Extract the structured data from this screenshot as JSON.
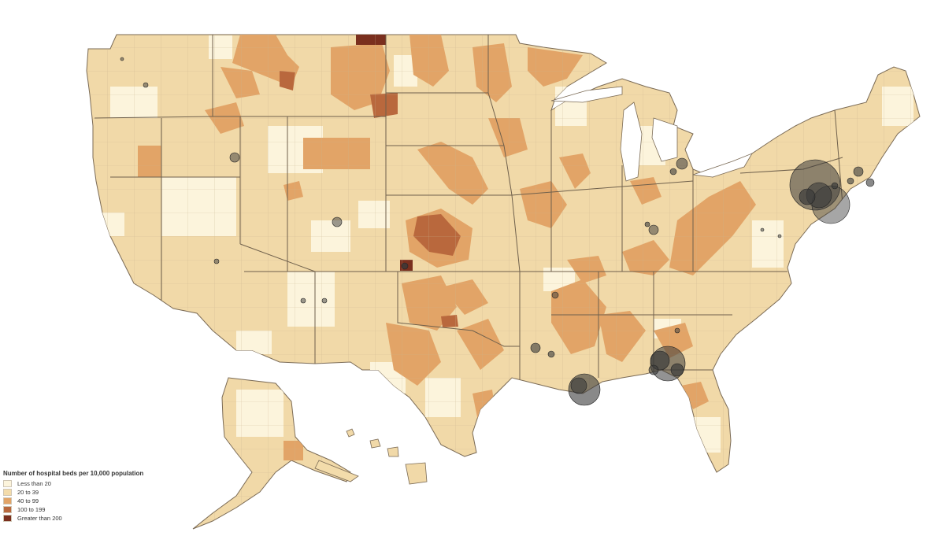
{
  "legend": {
    "title": "Number of hospital beds per 10,000 population",
    "items": [
      {
        "label": "Less than 20",
        "color": "#fcf4dc"
      },
      {
        "label": "20 to 39",
        "color": "#f3dcab"
      },
      {
        "label": "40 to 99",
        "color": "#e2a467"
      },
      {
        "label": "100 to 199",
        "color": "#b9683d"
      },
      {
        "label": "Greater than 200",
        "color": "#7a2f1e"
      }
    ]
  },
  "colors": {
    "background": "#ffffff",
    "border": "#7a6a55",
    "bubble": "#3a3a3a"
  }
}
